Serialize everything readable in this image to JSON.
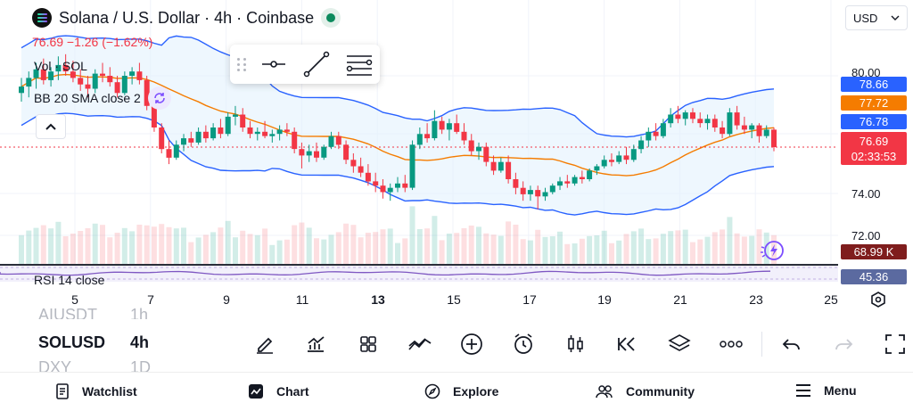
{
  "header": {
    "title": "Solana / U.S. Dollar · 4h · Coinbase",
    "change": "76.69 −1.26 (−1.62%)",
    "volume_label": "Vol · SOL",
    "bb_label": "BB 20 SMA close 2"
  },
  "currency": {
    "label": "USD"
  },
  "price_axis": {
    "ticks": [
      "80.00",
      "74.00",
      "72.00"
    ],
    "labels": {
      "bb_upper": "78.66",
      "bb_basis": "77.72",
      "bb_lower": "76.78",
      "last_price": "76.69",
      "countdown": "02:33:53",
      "volume": "68.99 K",
      "rsi": "45.36"
    },
    "colors": {
      "bb_upper": "#2962ff",
      "bb_basis": "#f57c00",
      "bb_lower": "#2962ff",
      "last_price": "#f23645",
      "volume": "#7f1d1d",
      "rsi": "#5b6aa0"
    }
  },
  "rsi": {
    "label": "RSI 14 close"
  },
  "x_axis": {
    "labels": [
      "5",
      "7",
      "9",
      "11",
      "13",
      "15",
      "17",
      "19",
      "21",
      "23",
      "25"
    ]
  },
  "symbols": {
    "prev": "AIUSDT",
    "current": "SOLUSD",
    "next": "DXY",
    "prev_tf": "1h",
    "current_tf": "4h",
    "next_tf": "1D"
  },
  "toolbar": {
    "icons": [
      "pencil-icon",
      "indicators-icon",
      "templates-icon",
      "compare-icon",
      "add-icon",
      "alert-icon",
      "chart-type-icon",
      "replay-icon",
      "layers-icon",
      "more-icon",
      "undo-icon",
      "redo-icon",
      "fullscreen-icon"
    ]
  },
  "nav": {
    "watchlist": "Watchlist",
    "chart": "Chart",
    "explore": "Explore",
    "community": "Community",
    "menu": "Menu"
  },
  "chart_data": {
    "type": "candlestick",
    "symbol": "SOLUSD",
    "interval": "4h",
    "x_labels": [
      "5",
      "7",
      "9",
      "11",
      "13",
      "15",
      "17",
      "19",
      "21",
      "23",
      "25"
    ],
    "ylim": [
      71.7,
      81.0
    ],
    "candles": [
      {
        "o": 79.2,
        "h": 79.9,
        "l": 78.8,
        "c": 79.5
      },
      {
        "o": 79.5,
        "h": 80.2,
        "l": 79.0,
        "c": 79.9
      },
      {
        "o": 79.9,
        "h": 80.6,
        "l": 79.4,
        "c": 80.3
      },
      {
        "o": 80.3,
        "h": 80.8,
        "l": 79.6,
        "c": 79.8
      },
      {
        "o": 79.8,
        "h": 80.4,
        "l": 79.5,
        "c": 80.2
      },
      {
        "o": 80.2,
        "h": 80.9,
        "l": 79.8,
        "c": 80.5
      },
      {
        "o": 80.5,
        "h": 81.0,
        "l": 80.0,
        "c": 80.2
      },
      {
        "o": 80.2,
        "h": 80.7,
        "l": 79.7,
        "c": 79.9
      },
      {
        "o": 79.9,
        "h": 80.3,
        "l": 79.3,
        "c": 79.6
      },
      {
        "o": 79.6,
        "h": 80.0,
        "l": 79.0,
        "c": 79.4
      },
      {
        "o": 79.4,
        "h": 80.3,
        "l": 79.2,
        "c": 80.1
      },
      {
        "o": 80.1,
        "h": 80.6,
        "l": 79.7,
        "c": 80.0
      },
      {
        "o": 80.0,
        "h": 80.4,
        "l": 79.5,
        "c": 79.7
      },
      {
        "o": 79.7,
        "h": 80.0,
        "l": 79.0,
        "c": 79.2
      },
      {
        "o": 79.2,
        "h": 80.2,
        "l": 79.1,
        "c": 80.0
      },
      {
        "o": 80.0,
        "h": 80.4,
        "l": 79.6,
        "c": 80.2
      },
      {
        "o": 80.2,
        "h": 80.6,
        "l": 79.6,
        "c": 79.8
      },
      {
        "o": 79.8,
        "h": 80.0,
        "l": 78.4,
        "c": 78.6
      },
      {
        "o": 78.6,
        "h": 78.8,
        "l": 77.4,
        "c": 77.6
      },
      {
        "o": 77.6,
        "h": 77.8,
        "l": 76.4,
        "c": 76.6
      },
      {
        "o": 76.6,
        "h": 77.0,
        "l": 75.9,
        "c": 76.2
      },
      {
        "o": 76.2,
        "h": 77.0,
        "l": 76.1,
        "c": 76.8
      },
      {
        "o": 76.8,
        "h": 77.3,
        "l": 76.5,
        "c": 77.1
      },
      {
        "o": 77.1,
        "h": 77.4,
        "l": 76.7,
        "c": 76.9
      },
      {
        "o": 76.9,
        "h": 77.6,
        "l": 76.8,
        "c": 77.4
      },
      {
        "o": 77.4,
        "h": 77.7,
        "l": 76.9,
        "c": 77.1
      },
      {
        "o": 77.1,
        "h": 77.8,
        "l": 77.0,
        "c": 77.6
      },
      {
        "o": 77.6,
        "h": 78.0,
        "l": 77.1,
        "c": 77.3
      },
      {
        "o": 77.3,
        "h": 78.3,
        "l": 77.2,
        "c": 78.1
      },
      {
        "o": 78.1,
        "h": 78.6,
        "l": 77.7,
        "c": 78.2
      },
      {
        "o": 78.2,
        "h": 78.5,
        "l": 77.4,
        "c": 77.6
      },
      {
        "o": 77.6,
        "h": 77.9,
        "l": 77.1,
        "c": 77.3
      },
      {
        "o": 77.3,
        "h": 77.6,
        "l": 77.0,
        "c": 77.4
      },
      {
        "o": 77.4,
        "h": 77.9,
        "l": 77.1,
        "c": 77.2
      },
      {
        "o": 77.2,
        "h": 77.5,
        "l": 76.9,
        "c": 77.3
      },
      {
        "o": 77.3,
        "h": 77.7,
        "l": 77.0,
        "c": 77.5
      },
      {
        "o": 77.5,
        "h": 77.8,
        "l": 77.2,
        "c": 77.4
      },
      {
        "o": 77.4,
        "h": 77.6,
        "l": 76.4,
        "c": 76.6
      },
      {
        "o": 76.6,
        "h": 76.9,
        "l": 75.7,
        "c": 76.3
      },
      {
        "o": 76.3,
        "h": 76.8,
        "l": 76.0,
        "c": 76.5
      },
      {
        "o": 76.5,
        "h": 76.9,
        "l": 76.0,
        "c": 76.2
      },
      {
        "o": 76.2,
        "h": 76.8,
        "l": 76.1,
        "c": 76.7
      },
      {
        "o": 76.7,
        "h": 77.4,
        "l": 76.6,
        "c": 77.2
      },
      {
        "o": 77.2,
        "h": 77.4,
        "l": 76.6,
        "c": 76.8
      },
      {
        "o": 76.8,
        "h": 77.0,
        "l": 75.9,
        "c": 76.1
      },
      {
        "o": 76.1,
        "h": 76.4,
        "l": 75.5,
        "c": 75.8
      },
      {
        "o": 75.8,
        "h": 76.2,
        "l": 75.3,
        "c": 75.5
      },
      {
        "o": 75.5,
        "h": 75.9,
        "l": 74.9,
        "c": 75.1
      },
      {
        "o": 75.1,
        "h": 75.5,
        "l": 74.6,
        "c": 74.9
      },
      {
        "o": 74.9,
        "h": 75.2,
        "l": 74.3,
        "c": 74.6
      },
      {
        "o": 74.6,
        "h": 75.0,
        "l": 74.2,
        "c": 74.8
      },
      {
        "o": 74.8,
        "h": 75.3,
        "l": 74.6,
        "c": 75.0
      },
      {
        "o": 75.0,
        "h": 75.4,
        "l": 74.6,
        "c": 74.8
      },
      {
        "o": 74.8,
        "h": 77.0,
        "l": 74.7,
        "c": 76.8
      },
      {
        "o": 76.8,
        "h": 77.6,
        "l": 76.6,
        "c": 77.3
      },
      {
        "o": 77.3,
        "h": 77.8,
        "l": 76.9,
        "c": 77.1
      },
      {
        "o": 77.1,
        "h": 78.4,
        "l": 77.0,
        "c": 77.9
      },
      {
        "o": 77.9,
        "h": 78.1,
        "l": 77.3,
        "c": 77.5
      },
      {
        "o": 77.5,
        "h": 78.0,
        "l": 77.0,
        "c": 77.8
      },
      {
        "o": 77.8,
        "h": 78.2,
        "l": 77.3,
        "c": 77.4
      },
      {
        "o": 77.4,
        "h": 77.8,
        "l": 76.8,
        "c": 77.0
      },
      {
        "o": 77.0,
        "h": 77.3,
        "l": 76.3,
        "c": 76.5
      },
      {
        "o": 76.5,
        "h": 76.9,
        "l": 76.1,
        "c": 76.7
      },
      {
        "o": 76.7,
        "h": 76.9,
        "l": 75.8,
        "c": 76.0
      },
      {
        "o": 76.0,
        "h": 76.3,
        "l": 75.4,
        "c": 75.6
      },
      {
        "o": 75.6,
        "h": 76.2,
        "l": 75.5,
        "c": 76.0
      },
      {
        "o": 76.0,
        "h": 76.3,
        "l": 75.0,
        "c": 75.2
      },
      {
        "o": 75.2,
        "h": 75.5,
        "l": 74.5,
        "c": 74.8
      },
      {
        "o": 74.8,
        "h": 75.1,
        "l": 74.2,
        "c": 74.5
      },
      {
        "o": 74.5,
        "h": 74.9,
        "l": 74.2,
        "c": 74.7
      },
      {
        "o": 74.7,
        "h": 74.9,
        "l": 73.8,
        "c": 74.4
      },
      {
        "o": 74.4,
        "h": 74.8,
        "l": 74.2,
        "c": 74.6
      },
      {
        "o": 74.6,
        "h": 75.0,
        "l": 74.5,
        "c": 74.9
      },
      {
        "o": 74.9,
        "h": 75.3,
        "l": 74.7,
        "c": 75.1
      },
      {
        "o": 75.1,
        "h": 75.4,
        "l": 74.8,
        "c": 75.0
      },
      {
        "o": 75.0,
        "h": 75.4,
        "l": 74.9,
        "c": 75.3
      },
      {
        "o": 75.3,
        "h": 75.6,
        "l": 75.0,
        "c": 75.2
      },
      {
        "o": 75.2,
        "h": 75.7,
        "l": 75.1,
        "c": 75.6
      },
      {
        "o": 75.6,
        "h": 75.9,
        "l": 75.4,
        "c": 75.8
      },
      {
        "o": 75.8,
        "h": 76.3,
        "l": 75.7,
        "c": 76.1
      },
      {
        "o": 76.1,
        "h": 76.4,
        "l": 75.8,
        "c": 76.0
      },
      {
        "o": 76.0,
        "h": 76.5,
        "l": 75.9,
        "c": 76.3
      },
      {
        "o": 76.3,
        "h": 76.7,
        "l": 75.9,
        "c": 76.1
      },
      {
        "o": 76.1,
        "h": 76.8,
        "l": 76.0,
        "c": 76.6
      },
      {
        "o": 76.6,
        "h": 77.2,
        "l": 76.4,
        "c": 77.0
      },
      {
        "o": 77.0,
        "h": 77.6,
        "l": 76.7,
        "c": 77.4
      },
      {
        "o": 77.4,
        "h": 77.8,
        "l": 77.0,
        "c": 77.2
      },
      {
        "o": 77.2,
        "h": 78.0,
        "l": 77.1,
        "c": 77.8
      },
      {
        "o": 77.8,
        "h": 78.5,
        "l": 77.6,
        "c": 78.2
      },
      {
        "o": 78.2,
        "h": 78.6,
        "l": 77.8,
        "c": 78.0
      },
      {
        "o": 78.0,
        "h": 78.4,
        "l": 77.7,
        "c": 78.3
      },
      {
        "o": 78.3,
        "h": 78.5,
        "l": 77.8,
        "c": 78.0
      },
      {
        "o": 78.0,
        "h": 78.3,
        "l": 77.6,
        "c": 77.8
      },
      {
        "o": 77.8,
        "h": 78.2,
        "l": 77.5,
        "c": 78.0
      },
      {
        "o": 78.0,
        "h": 78.2,
        "l": 77.4,
        "c": 77.6
      },
      {
        "o": 77.6,
        "h": 77.9,
        "l": 77.1,
        "c": 77.3
      },
      {
        "o": 77.3,
        "h": 78.5,
        "l": 77.2,
        "c": 78.3
      },
      {
        "o": 78.3,
        "h": 78.6,
        "l": 77.5,
        "c": 77.7
      },
      {
        "o": 77.7,
        "h": 78.1,
        "l": 77.3,
        "c": 77.5
      },
      {
        "o": 77.5,
        "h": 77.8,
        "l": 77.1,
        "c": 77.7
      },
      {
        "o": 77.7,
        "h": 77.8,
        "l": 76.9,
        "c": 77.2
      },
      {
        "o": 77.2,
        "h": 77.7,
        "l": 77.1,
        "c": 77.5
      },
      {
        "o": 77.5,
        "h": 77.6,
        "l": 76.5,
        "c": 76.69
      }
    ],
    "bollinger": {
      "upper_last": 78.66,
      "basis_last": 77.72,
      "lower_last": 76.78
    },
    "volume_last": "68.99 K",
    "rsi_last": 45.36
  }
}
